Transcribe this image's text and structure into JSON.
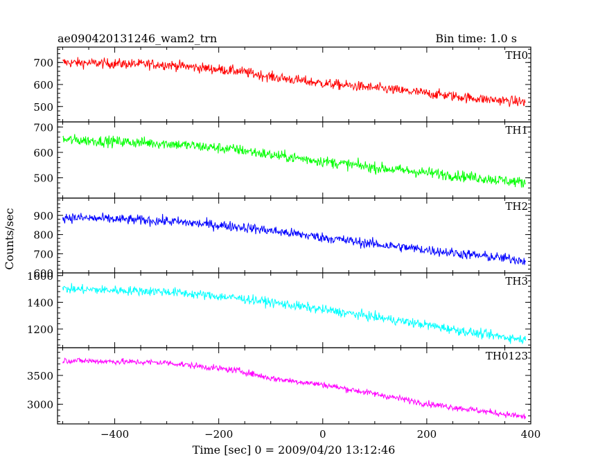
{
  "chart_data": {
    "type": "line",
    "title": "ae090420131246_wam2_trn",
    "subtitle": "Bin time: 1.0 s",
    "xlabel": "Time [sec] 0 = 2009/04/20 13:12:46",
    "ylabel": "Counts/sec",
    "xlim": [
      -510,
      400
    ],
    "xticks": [
      -400,
      -200,
      0,
      200,
      400
    ],
    "x_start": -500,
    "x_end": 390,
    "panels": [
      {
        "name": "TH0",
        "color": "#ff0000",
        "ylim": [
          430,
          770
        ],
        "yticks": [
          500,
          600,
          700
        ],
        "trend": [
          [
            -500,
            700
          ],
          [
            -300,
            690
          ],
          [
            -160,
            660
          ],
          [
            -100,
            635
          ],
          [
            0,
            605
          ],
          [
            100,
            585
          ],
          [
            200,
            560
          ],
          [
            300,
            535
          ],
          [
            390,
            520
          ]
        ],
        "noise": 30
      },
      {
        "name": "TH1",
        "color": "#00ff00",
        "ylim": [
          420,
          720
        ],
        "yticks": [
          500,
          600,
          700
        ],
        "trend": [
          [
            -500,
            650
          ],
          [
            -300,
            635
          ],
          [
            -160,
            610
          ],
          [
            -100,
            590
          ],
          [
            0,
            565
          ],
          [
            100,
            540
          ],
          [
            200,
            520
          ],
          [
            300,
            500
          ],
          [
            390,
            480
          ]
        ],
        "noise": 28
      },
      {
        "name": "TH2",
        "color": "#0000ff",
        "ylim": [
          600,
          990
        ],
        "yticks": [
          600,
          700,
          800,
          900
        ],
        "trend": [
          [
            -500,
            890
          ],
          [
            -300,
            870
          ],
          [
            -160,
            840
          ],
          [
            -100,
            820
          ],
          [
            0,
            785
          ],
          [
            100,
            750
          ],
          [
            200,
            720
          ],
          [
            300,
            690
          ],
          [
            390,
            665
          ]
        ],
        "noise": 34
      },
      {
        "name": "TH3",
        "color": "#00ffff",
        "ylim": [
          1060,
          1620
        ],
        "yticks": [
          1200,
          1400,
          1600
        ],
        "trend": [
          [
            -500,
            1500
          ],
          [
            -300,
            1480
          ],
          [
            -160,
            1430
          ],
          [
            -100,
            1400
          ],
          [
            0,
            1345
          ],
          [
            100,
            1290
          ],
          [
            200,
            1230
          ],
          [
            300,
            1165
          ],
          [
            390,
            1120
          ]
        ],
        "noise": 45
      },
      {
        "name": "TH0123",
        "color": "#ff00ff",
        "ylim": [
          2660,
          3980
        ],
        "yticks": [
          3000,
          3500
        ],
        "trend": [
          [
            -500,
            3760
          ],
          [
            -300,
            3720
          ],
          [
            -160,
            3580
          ],
          [
            -100,
            3450
          ],
          [
            0,
            3340
          ],
          [
            100,
            3180
          ],
          [
            200,
            3010
          ],
          [
            300,
            2890
          ],
          [
            390,
            2780
          ]
        ],
        "noise": 70
      }
    ]
  }
}
